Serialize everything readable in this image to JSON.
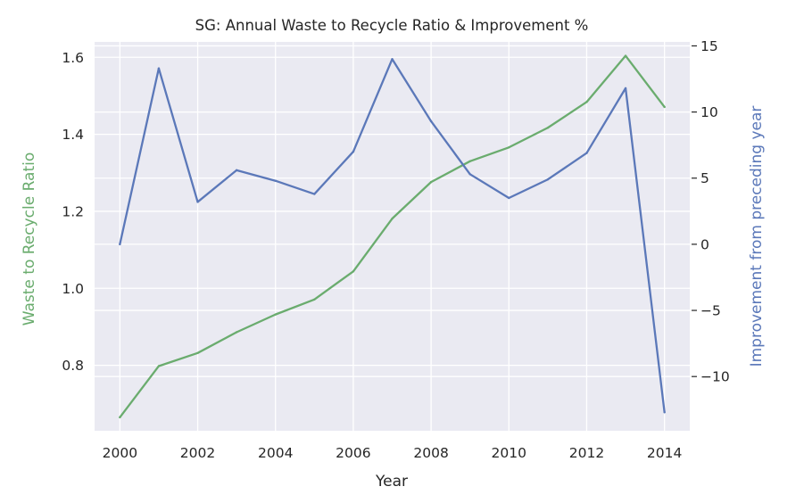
{
  "chart_data": {
    "type": "line",
    "title": "SG: Annual Waste to Recycle Ratio & Improvement %",
    "xlabel": "Year",
    "ylabel_left": "Waste to Recycle Ratio",
    "ylabel_right": "Improvement from preceding year",
    "x": [
      2000,
      2001,
      2002,
      2003,
      2004,
      2005,
      2006,
      2007,
      2008,
      2009,
      2010,
      2011,
      2012,
      2013,
      2014
    ],
    "xticks": [
      "2000",
      "2002",
      "2004",
      "2006",
      "2008",
      "2010",
      "2012",
      "2014"
    ],
    "xlim": [
      1999.35,
      2014.65
    ],
    "ylim_left": [
      0.63,
      1.64
    ],
    "yticks_left": [
      "0.8",
      "1.0",
      "1.2",
      "1.4",
      "1.6"
    ],
    "ylim_right": [
      -14.1,
      15.3
    ],
    "yticks_right": [
      "−10",
      "−5",
      "0",
      "5",
      "10",
      "15"
    ],
    "grid": true,
    "series": [
      {
        "axis": "left",
        "color": "#6aac6e",
        "values": [
          0.665,
          0.798,
          0.832,
          0.886,
          0.932,
          0.971,
          1.044,
          1.181,
          1.276,
          1.33,
          1.366,
          1.417,
          1.484,
          1.604,
          1.471
        ]
      },
      {
        "axis": "right",
        "color": "#5b78b9",
        "values": [
          0.0,
          13.3,
          3.2,
          5.6,
          4.8,
          3.8,
          7.0,
          14.0,
          9.3,
          5.3,
          3.5,
          4.9,
          6.9,
          11.8,
          -12.7
        ]
      }
    ],
    "colors": {
      "plot_background": "#eaeaf2",
      "grid": "#ffffff",
      "left_label": "#6aac6e",
      "right_label": "#5b78b9",
      "tick_text": "#262626"
    }
  }
}
